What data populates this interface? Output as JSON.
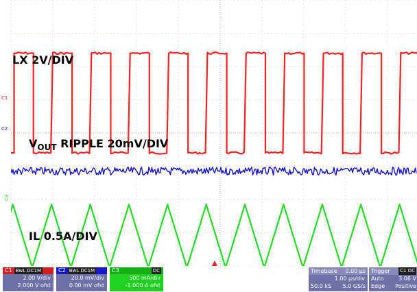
{
  "chart_data": {
    "type": "line",
    "title": "",
    "grid": true,
    "xlabel": "",
    "ylabel": "",
    "divisions": {
      "x": 10,
      "y": 8
    },
    "series": [
      {
        "name": "LX 2V/DIV",
        "channel": "C1",
        "color": "#ff2020",
        "waveform": "square",
        "cycles": 10.5,
        "high_div": 1.6,
        "low_div": 4.6,
        "duty": 0.5
      },
      {
        "name": "VOUT RIPPLE 20mV/DIV",
        "channel": "C2",
        "color": "#1010d0",
        "waveform": "noise",
        "level_div": 5.15,
        "noise_div": 0.12
      },
      {
        "name": "IL 0.5A/DIV",
        "channel": "C3",
        "color": "#22dd22",
        "waveform": "triangle",
        "cycles": 10.5,
        "peak_div": 6.15,
        "trough_div": 8.05
      }
    ]
  },
  "labels": {
    "lx": "LX 2V/DIV",
    "vout_main": "V",
    "vout_sub": "OUT",
    "vout_rest": " RIPPLE 20mV/DIV",
    "il": "IL 0.5A/DIV"
  },
  "markers": {
    "c1": "C1",
    "c2": "C2",
    "c3": "C3"
  },
  "status": {
    "c1": {
      "name": "C1",
      "tag": "BwL DC1M",
      "scale": "2.00 V/div",
      "offset": "2.000 V ofst"
    },
    "c2": {
      "name": "C2",
      "tag": "BwL DC1M",
      "scale": "20.0 mV/div",
      "offset": "0.00 mV ofst"
    },
    "c3": {
      "name": "C3",
      "tag": "DC",
      "scale": "500 mA/div",
      "offset": "-1.000 A ofst"
    },
    "timebase": {
      "label": "Timebase",
      "value": "0.00 µs",
      "per_div": "1.00 µs/div",
      "samples": "50.0 kS",
      "rate": "5.0 GS/s"
    },
    "trigger": {
      "label": "Trigger",
      "tag": "C1 DC",
      "mode": "Auto",
      "level": "3.06 V",
      "type": "Edge",
      "slope": "Positive"
    }
  }
}
